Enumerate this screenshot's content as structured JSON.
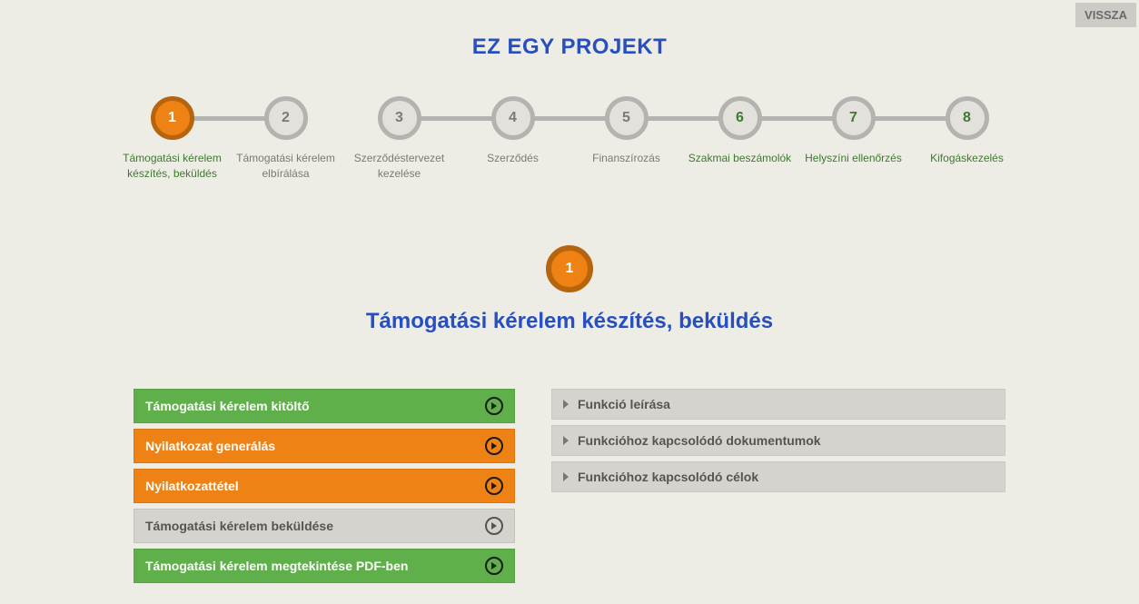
{
  "back_button_label": "VISSZA",
  "page_title": "EZ EGY PROJEKT",
  "colors": {
    "primary_blue": "#274fbf",
    "orange": "#ee8214",
    "orange_dark": "#b7640f",
    "green": "#5fb04a",
    "green_text": "#3e7a2f",
    "green_dark_border": "#2d5a1f",
    "gray_circle_border": "#b4b3b0",
    "gray_bg": "#e2e1db",
    "gray_text": "#7a7a76",
    "gray_action_bg": "#d4d3cd",
    "gray_action_text": "#555555",
    "connector": "#b4b3b0",
    "dark_icon": "#1a1a1a",
    "white": "#ffffff"
  },
  "stepper": {
    "steps": [
      {
        "num": "1",
        "label": "Támogatási kérelem készítés, beküldés",
        "state": "active",
        "label_color": "#3e7a2f"
      },
      {
        "num": "2",
        "label": "Támogatási kérelem elbírálása",
        "state": "inactive",
        "label_color": "#7a7a76"
      },
      {
        "num": "3",
        "label": "Szerződéstervezet kezelése",
        "state": "inactive",
        "label_color": "#7a7a76"
      },
      {
        "num": "4",
        "label": "Szerződés",
        "state": "inactive",
        "label_color": "#7a7a76"
      },
      {
        "num": "5",
        "label": "Finanszírozás",
        "state": "inactive",
        "label_color": "#7a7a76"
      },
      {
        "num": "6",
        "label": "Szakmai beszámolók",
        "state": "future",
        "label_color": "#3e7a2f"
      },
      {
        "num": "7",
        "label": "Helyszíni ellenőrzés",
        "state": "future",
        "label_color": "#3e7a2f"
      },
      {
        "num": "8",
        "label": "Kifogáskezelés",
        "state": "future",
        "label_color": "#3e7a2f"
      }
    ],
    "connector_gap_after_index": 1,
    "circle_styles": {
      "active": {
        "bg": "#ee8214",
        "border": "#b7640f",
        "text": "#ffffff"
      },
      "inactive": {
        "bg": "#e2e1db",
        "border": "#b4b3b0",
        "text": "#7a7a76"
      },
      "future": {
        "bg": "#e2e1db",
        "border": "#b4b3b0",
        "text": "#3e7a2f"
      }
    }
  },
  "current": {
    "num": "1",
    "title": "Támogatási kérelem készítés, beküldés",
    "circle": {
      "bg": "#ee8214",
      "border": "#b7640f",
      "text": "#ffffff"
    }
  },
  "actions": [
    {
      "label": "Támogatási kérelem kitöltő",
      "bg": "#5fb04a",
      "text": "#ffffff",
      "icon_border": "#1a1a1a",
      "icon_fill": "#1a1a1a"
    },
    {
      "label": "Nyilatkozat generálás",
      "bg": "#ee8214",
      "text": "#ffffff",
      "icon_border": "#1a1a1a",
      "icon_fill": "#1a1a1a"
    },
    {
      "label": "Nyilatkozattétel",
      "bg": "#ee8214",
      "text": "#ffffff",
      "icon_border": "#1a1a1a",
      "icon_fill": "#1a1a1a"
    },
    {
      "label": "Támogatási kérelem beküldése",
      "bg": "#d4d3cd",
      "text": "#555555",
      "icon_border": "#555555",
      "icon_fill": "#555555"
    },
    {
      "label": "Támogatási kérelem megtekintése PDF-ben",
      "bg": "#5fb04a",
      "text": "#ffffff",
      "icon_border": "#1a1a1a",
      "icon_fill": "#1a1a1a"
    }
  ],
  "info_items": [
    {
      "label": "Funkció leírása"
    },
    {
      "label": "Funkcióhoz kapcsolódó dokumentumok"
    },
    {
      "label": "Funkcióhoz kapcsolódó célok"
    }
  ]
}
